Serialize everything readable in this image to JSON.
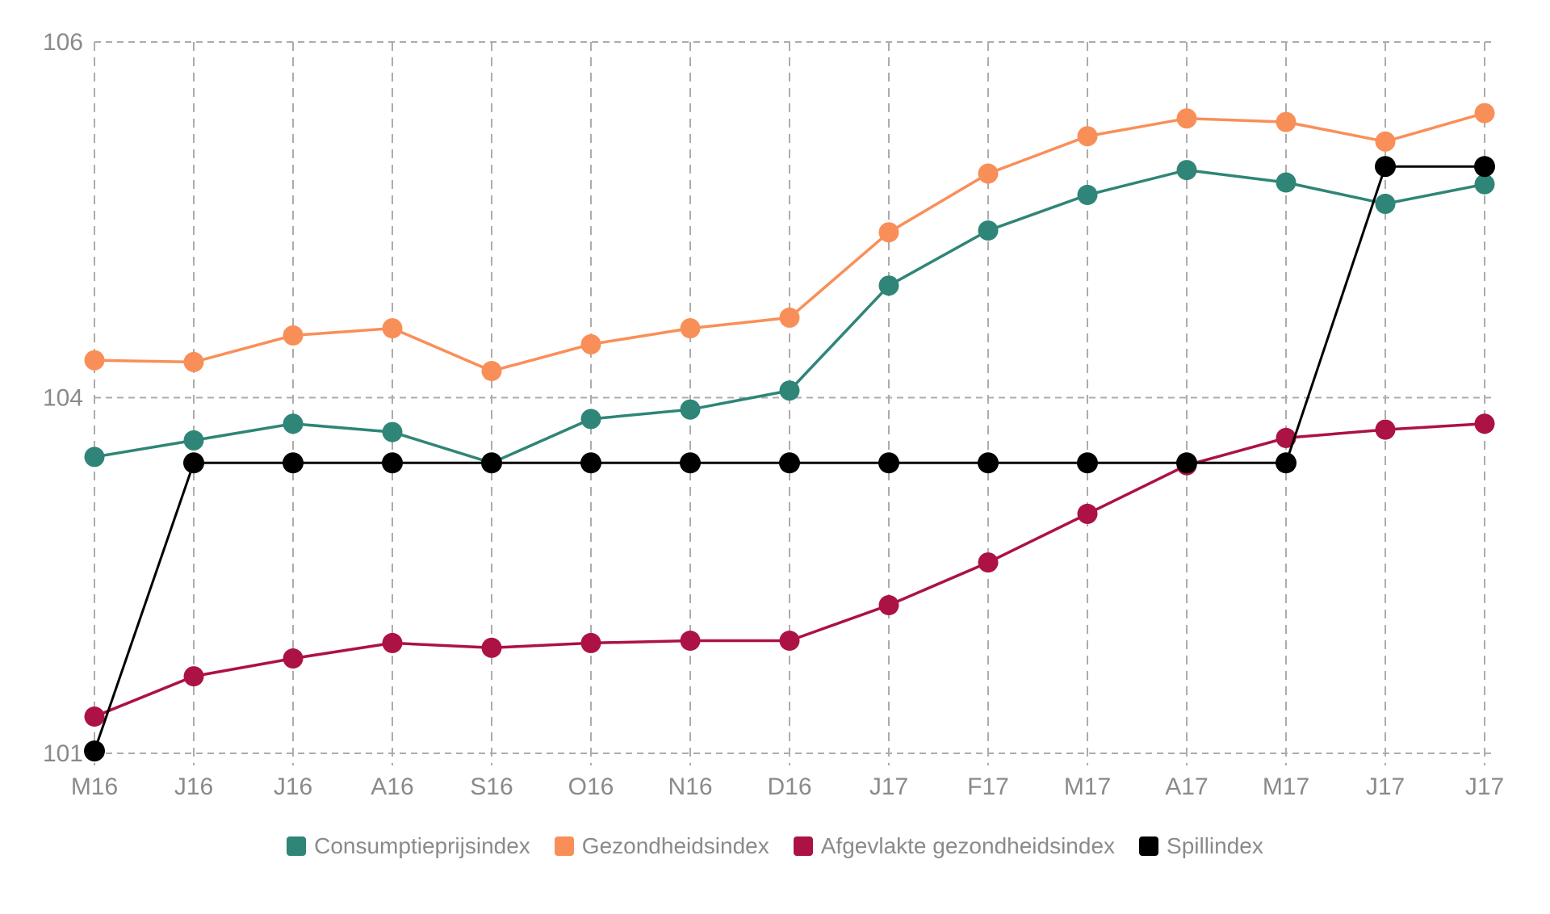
{
  "chart_data": {
    "type": "line",
    "title": "",
    "xlabel": "",
    "ylabel": "",
    "categories": [
      "M16",
      "J16",
      "J16",
      "A16",
      "S16",
      "O16",
      "N16",
      "D16",
      "J17",
      "F17",
      "M17",
      "A17",
      "M17",
      "J17",
      "J17"
    ],
    "y_ticks": [
      101,
      104,
      106
    ],
    "y_scale": "piecewise-linear, tick gridlines evenly spaced",
    "grid": "dashed",
    "legend_position": "bottom",
    "series": [
      {
        "name": "Consumptieprijsindex",
        "color": "#2F8577",
        "values": [
          103.5,
          103.64,
          103.78,
          103.71,
          103.45,
          103.82,
          103.9,
          104.04,
          104.63,
          104.94,
          105.14,
          105.28,
          105.21,
          105.09,
          105.2
        ]
      },
      {
        "name": "Gezondheidsindex",
        "color": "#F98F58",
        "values": [
          104.21,
          104.2,
          104.35,
          104.39,
          104.15,
          104.3,
          104.39,
          104.45,
          104.93,
          105.26,
          105.47,
          105.57,
          105.55,
          105.44,
          105.6
        ]
      },
      {
        "name": "Afgevlakte gezondheidsindex",
        "color": "#AC1244",
        "values": [
          101.31,
          101.65,
          101.8,
          101.93,
          101.89,
          101.93,
          101.95,
          101.95,
          102.25,
          102.61,
          103.02,
          103.43,
          103.66,
          103.73,
          103.78
        ]
      },
      {
        "name": "Spillindex",
        "color": "#000000",
        "values": [
          101.02,
          103.45,
          103.45,
          103.45,
          103.45,
          103.45,
          103.45,
          103.45,
          103.45,
          103.45,
          103.45,
          103.45,
          103.45,
          105.3,
          105.3
        ]
      }
    ]
  },
  "colors": {
    "background": "#ffffff",
    "gridline": "#acacac",
    "axis_label": "#8a8a8a"
  }
}
